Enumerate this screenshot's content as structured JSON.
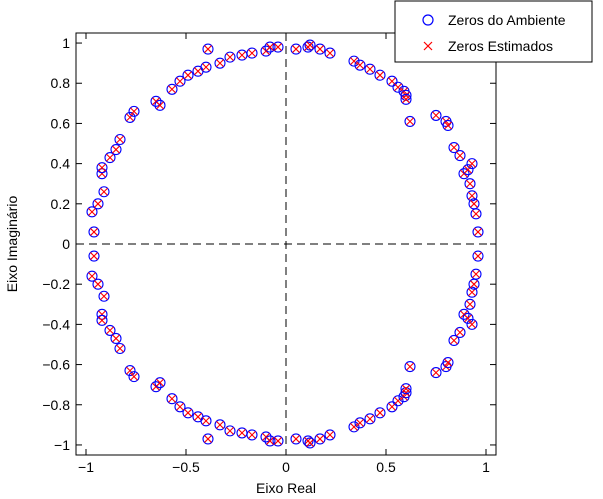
{
  "chart_data": {
    "type": "scatter",
    "title": "",
    "xlabel": "Eixo Real",
    "ylabel": "Eixo Imaginário",
    "xlim": [
      -1.05,
      1.05
    ],
    "ylim": [
      -1.05,
      1.05
    ],
    "xticks": [
      -1,
      -0.5,
      0,
      0.5,
      1
    ],
    "xtick_labels": [
      "−1",
      "−0.5",
      "0",
      "0.5",
      "1"
    ],
    "yticks": [
      -1,
      -0.8,
      -0.6,
      -0.4,
      -0.2,
      0,
      0.2,
      0.4,
      0.6,
      0.8,
      1
    ],
    "ytick_labels": [
      "−1",
      "−0.8",
      "−0.6",
      "−0.4",
      "−0.2",
      "0",
      "0.2",
      "0.4",
      "0.6",
      "0.8",
      "1"
    ],
    "grid": false,
    "reference_lines": {
      "x": 0,
      "y": 0,
      "style": "dashed"
    },
    "legend_position": "top-right",
    "series": [
      {
        "name": "Zeros do Ambiente",
        "marker": "circle",
        "color": "#0000ff",
        "points_upper": [
          [
            -0.97,
            0.16
          ],
          [
            -0.94,
            0.2
          ],
          [
            -0.96,
            0.06
          ],
          [
            -0.92,
            0.35
          ],
          [
            -0.92,
            0.38
          ],
          [
            -0.91,
            0.26
          ],
          [
            -0.88,
            0.43
          ],
          [
            -0.85,
            0.47
          ],
          [
            -0.83,
            0.52
          ],
          [
            -0.78,
            0.63
          ],
          [
            -0.76,
            0.66
          ],
          [
            -0.65,
            0.71
          ],
          [
            -0.63,
            0.69
          ],
          [
            -0.57,
            0.77
          ],
          [
            -0.53,
            0.81
          ],
          [
            -0.49,
            0.84
          ],
          [
            -0.44,
            0.86
          ],
          [
            -0.4,
            0.88
          ],
          [
            -0.39,
            0.97
          ],
          [
            -0.33,
            0.9
          ],
          [
            -0.28,
            0.93
          ],
          [
            -0.22,
            0.94
          ],
          [
            -0.17,
            0.95
          ],
          [
            -0.1,
            0.96
          ],
          [
            -0.08,
            0.98
          ],
          [
            -0.04,
            0.98
          ],
          [
            0.05,
            0.97
          ],
          [
            0.11,
            0.98
          ],
          [
            0.12,
            0.99
          ],
          [
            0.17,
            0.97
          ],
          [
            0.22,
            0.95
          ],
          [
            0.34,
            0.91
          ],
          [
            0.37,
            0.89
          ],
          [
            0.42,
            0.87
          ],
          [
            0.47,
            0.84
          ],
          [
            0.53,
            0.81
          ],
          [
            0.56,
            0.78
          ],
          [
            0.59,
            0.76
          ],
          [
            0.6,
            0.74
          ],
          [
            0.6,
            0.72
          ],
          [
            0.62,
            0.61
          ],
          [
            0.75,
            0.64
          ],
          [
            0.8,
            0.61
          ],
          [
            0.81,
            0.59
          ],
          [
            0.84,
            0.48
          ],
          [
            0.87,
            0.44
          ],
          [
            0.89,
            0.35
          ],
          [
            0.91,
            0.37
          ],
          [
            0.92,
            0.3
          ],
          [
            0.93,
            0.4
          ],
          [
            0.93,
            0.24
          ],
          [
            0.94,
            0.2
          ],
          [
            0.95,
            0.15
          ],
          [
            0.96,
            0.06
          ]
        ]
      },
      {
        "name": "Zeros Estimados",
        "marker": "x",
        "color": "#ff0000",
        "mirror_of": "Zeros do Ambiente"
      }
    ]
  }
}
